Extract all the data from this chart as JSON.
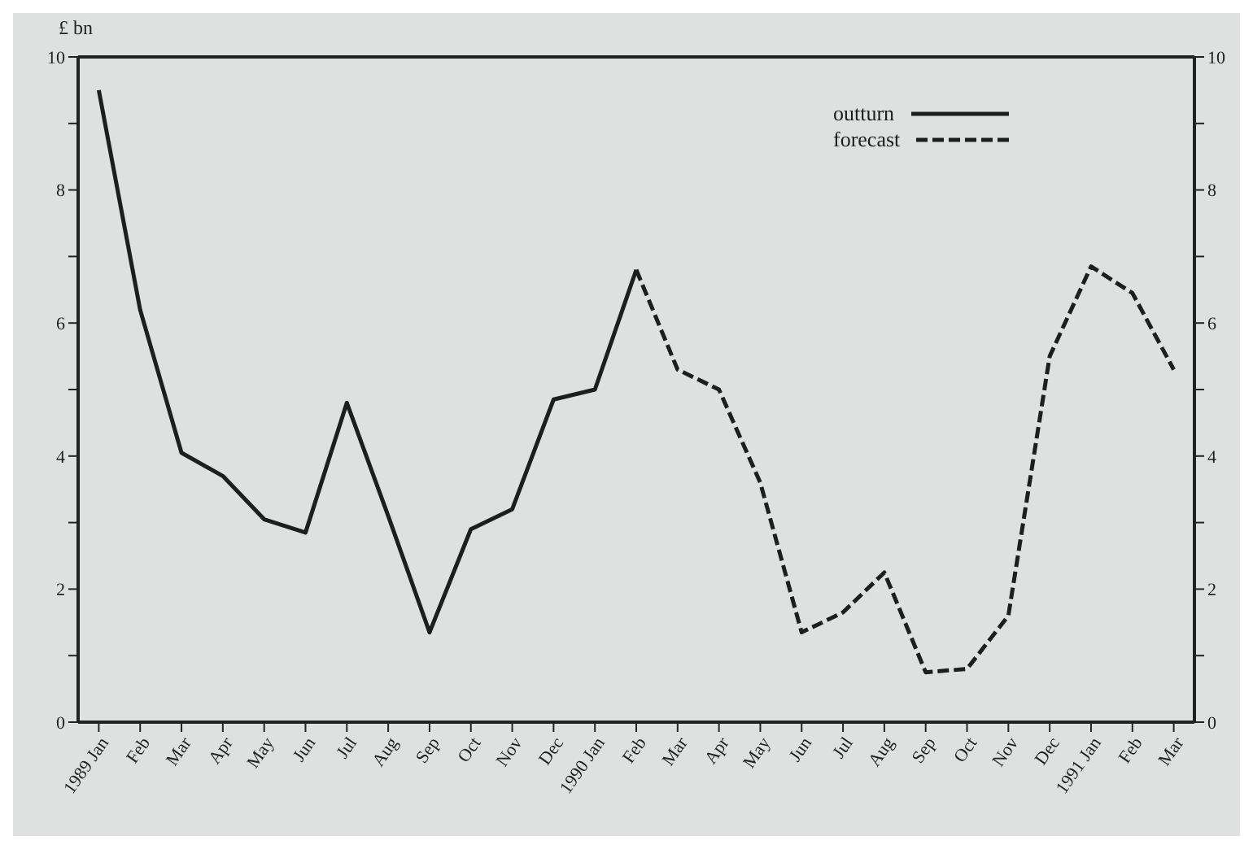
{
  "chart_data": {
    "type": "line",
    "ylabel": "£ bn",
    "categories": [
      "1989 Jan",
      "Feb",
      "Mar",
      "Apr",
      "May",
      "Jun",
      "Jul",
      "Aug",
      "Sep",
      "Oct",
      "Nov",
      "Dec",
      "1990 Jan",
      "Feb",
      "Mar",
      "Apr",
      "May",
      "Jun",
      "Jul",
      "Aug",
      "Sep",
      "Oct",
      "Nov",
      "Dec",
      "1991 Jan",
      "Feb",
      "Mar"
    ],
    "series": [
      {
        "name": "outturn",
        "color": "#1e1e1e",
        "line_style": "solid",
        "values": [
          9.5,
          6.2,
          4.05,
          3.7,
          3.05,
          2.85,
          4.8,
          3.1,
          1.35,
          2.9,
          3.2,
          4.85,
          5.0,
          6.8,
          null,
          null,
          null,
          null,
          null,
          null,
          null,
          null,
          null,
          null,
          null,
          null,
          null
        ]
      },
      {
        "name": "forecast",
        "color": "#1e1e1e",
        "line_style": "dashed",
        "values": [
          null,
          null,
          null,
          null,
          null,
          null,
          null,
          null,
          null,
          null,
          null,
          null,
          null,
          6.8,
          5.3,
          5.0,
          3.6,
          1.35,
          1.65,
          2.25,
          0.75,
          0.8,
          1.6,
          5.5,
          6.85,
          6.45,
          5.3
        ]
      }
    ],
    "ylim": [
      0,
      10
    ],
    "yticks": [
      0,
      {
        "value": 1,
        "label": null
      },
      2,
      {
        "value": 3,
        "label": null
      },
      4,
      {
        "value": 5,
        "label": null
      },
      6,
      {
        "value": 7,
        "label": null
      },
      8,
      {
        "value": 9,
        "label": null
      },
      10
    ],
    "y2lim": [
      0,
      10
    ],
    "y2ticks": [
      0,
      {
        "value": 1,
        "label": null
      },
      2,
      {
        "value": 3,
        "label": null
      },
      4,
      {
        "value": 5,
        "label": null
      },
      6,
      {
        "value": 7,
        "label": null
      },
      8,
      {
        "value": 9,
        "label": null
      },
      10
    ],
    "legend": "top right",
    "marker": "none"
  }
}
